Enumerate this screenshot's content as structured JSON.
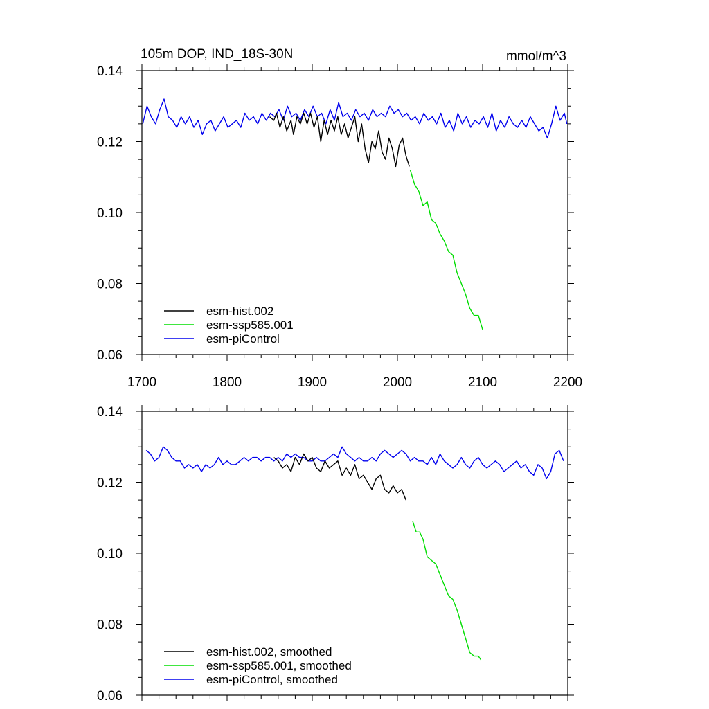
{
  "chart_data": [
    {
      "type": "line",
      "title": "105m DOP, IND_18S-30N",
      "units": "mmol/m^3",
      "xlim": [
        1700,
        2200
      ],
      "ylim": [
        0.06,
        0.14
      ],
      "x_ticks": [
        1700,
        1800,
        1900,
        2000,
        2100,
        2200
      ],
      "x_tick_labels": [
        "1700",
        "1800",
        "1900",
        "2000",
        "2100",
        "2200"
      ],
      "y_ticks": [
        0.06,
        0.08,
        0.1,
        0.12,
        0.14
      ],
      "y_tick_labels": [
        "0.06",
        "0.08",
        "0.10",
        "0.12",
        "0.14"
      ],
      "legend_position": "bottom-left",
      "series": [
        {
          "name": "esm-hist.002",
          "color": "#000000",
          "x": [
            1850,
            1855,
            1858,
            1862,
            1866,
            1870,
            1875,
            1878,
            1882,
            1886,
            1890,
            1894,
            1898,
            1902,
            1906,
            1910,
            1914,
            1918,
            1922,
            1926,
            1930,
            1934,
            1938,
            1942,
            1946,
            1950,
            1954,
            1958,
            1962,
            1966,
            1970,
            1974,
            1978,
            1982,
            1986,
            1990,
            1994,
            1998,
            2002,
            2006,
            2010,
            2014
          ],
          "y": [
            0.127,
            0.126,
            0.128,
            0.124,
            0.127,
            0.123,
            0.126,
            0.122,
            0.127,
            0.125,
            0.128,
            0.125,
            0.128,
            0.124,
            0.127,
            0.12,
            0.126,
            0.122,
            0.126,
            0.123,
            0.127,
            0.122,
            0.125,
            0.121,
            0.124,
            0.127,
            0.12,
            0.125,
            0.118,
            0.114,
            0.12,
            0.118,
            0.123,
            0.117,
            0.115,
            0.121,
            0.118,
            0.113,
            0.119,
            0.121,
            0.116,
            0.113
          ]
        },
        {
          "name": "esm-ssp585.001",
          "color": "#00dd00",
          "x": [
            2015,
            2020,
            2025,
            2030,
            2035,
            2040,
            2045,
            2050,
            2055,
            2060,
            2065,
            2070,
            2075,
            2080,
            2085,
            2090,
            2095,
            2100
          ],
          "y": [
            0.112,
            0.108,
            0.106,
            0.102,
            0.103,
            0.098,
            0.097,
            0.094,
            0.092,
            0.089,
            0.088,
            0.083,
            0.08,
            0.077,
            0.073,
            0.071,
            0.071,
            0.067
          ]
        },
        {
          "name": "esm-piControl",
          "color": "#0000ee",
          "x": [
            1701,
            1706,
            1711,
            1716,
            1721,
            1726,
            1731,
            1736,
            1741,
            1746,
            1751,
            1756,
            1761,
            1766,
            1771,
            1776,
            1781,
            1786,
            1791,
            1796,
            1801,
            1806,
            1811,
            1816,
            1821,
            1826,
            1831,
            1836,
            1841,
            1846,
            1851,
            1856,
            1861,
            1866,
            1871,
            1876,
            1881,
            1886,
            1891,
            1896,
            1901,
            1906,
            1911,
            1916,
            1921,
            1926,
            1931,
            1936,
            1941,
            1946,
            1951,
            1956,
            1961,
            1966,
            1971,
            1976,
            1981,
            1986,
            1991,
            1996,
            2001,
            2006,
            2011,
            2016,
            2021,
            2026,
            2031,
            2036,
            2041,
            2046,
            2051,
            2056,
            2061,
            2066,
            2071,
            2076,
            2081,
            2086,
            2091,
            2096,
            2101,
            2106,
            2111,
            2116,
            2121,
            2126,
            2131,
            2136,
            2141,
            2146,
            2151,
            2156,
            2161,
            2166,
            2171,
            2176,
            2181,
            2186,
            2191,
            2196,
            2199
          ],
          "y": [
            0.125,
            0.13,
            0.127,
            0.125,
            0.129,
            0.132,
            0.127,
            0.126,
            0.124,
            0.127,
            0.125,
            0.127,
            0.124,
            0.126,
            0.122,
            0.125,
            0.126,
            0.123,
            0.125,
            0.127,
            0.124,
            0.125,
            0.126,
            0.124,
            0.128,
            0.126,
            0.127,
            0.125,
            0.128,
            0.126,
            0.128,
            0.127,
            0.129,
            0.126,
            0.13,
            0.127,
            0.128,
            0.126,
            0.129,
            0.127,
            0.13,
            0.127,
            0.128,
            0.125,
            0.129,
            0.126,
            0.131,
            0.127,
            0.128,
            0.126,
            0.129,
            0.127,
            0.128,
            0.126,
            0.129,
            0.127,
            0.128,
            0.127,
            0.13,
            0.128,
            0.129,
            0.127,
            0.128,
            0.126,
            0.127,
            0.125,
            0.128,
            0.126,
            0.127,
            0.125,
            0.128,
            0.124,
            0.126,
            0.123,
            0.128,
            0.125,
            0.127,
            0.124,
            0.126,
            0.125,
            0.127,
            0.124,
            0.128,
            0.123,
            0.126,
            0.124,
            0.127,
            0.125,
            0.124,
            0.126,
            0.124,
            0.127,
            0.125,
            0.123,
            0.124,
            0.121,
            0.125,
            0.13,
            0.126,
            0.128,
            0.125
          ]
        }
      ]
    },
    {
      "type": "line",
      "xlim": [
        1700,
        2200
      ],
      "ylim": [
        0.06,
        0.14
      ],
      "x_ticks": [
        1700,
        1800,
        1900,
        2000,
        2100,
        2200
      ],
      "y_ticks": [
        0.06,
        0.08,
        0.1,
        0.12,
        0.14
      ],
      "y_tick_labels": [
        "0.06",
        "0.08",
        "0.10",
        "0.12",
        "0.14"
      ],
      "legend_position": "bottom-left",
      "series": [
        {
          "name": "esm-hist.002, smoothed",
          "color": "#000000",
          "x": [
            1855,
            1860,
            1865,
            1870,
            1875,
            1880,
            1885,
            1890,
            1895,
            1900,
            1905,
            1910,
            1915,
            1920,
            1925,
            1930,
            1935,
            1940,
            1945,
            1950,
            1955,
            1960,
            1965,
            1970,
            1975,
            1980,
            1985,
            1990,
            1995,
            2000,
            2005,
            2010
          ],
          "y": [
            0.127,
            0.126,
            0.124,
            0.125,
            0.123,
            0.127,
            0.125,
            0.128,
            0.126,
            0.127,
            0.124,
            0.123,
            0.126,
            0.124,
            0.125,
            0.126,
            0.122,
            0.124,
            0.122,
            0.125,
            0.121,
            0.122,
            0.12,
            0.118,
            0.121,
            0.122,
            0.118,
            0.117,
            0.119,
            0.117,
            0.118,
            0.115
          ]
        },
        {
          "name": "esm-ssp585.001, smoothed",
          "color": "#00dd00",
          "x": [
            2018,
            2022,
            2026,
            2030,
            2035,
            2040,
            2045,
            2050,
            2055,
            2060,
            2065,
            2070,
            2075,
            2080,
            2085,
            2090,
            2095,
            2098
          ],
          "y": [
            0.109,
            0.106,
            0.106,
            0.104,
            0.099,
            0.098,
            0.097,
            0.094,
            0.091,
            0.088,
            0.087,
            0.084,
            0.08,
            0.076,
            0.072,
            0.071,
            0.071,
            0.07
          ]
        },
        {
          "name": "esm-piControl, smoothed",
          "color": "#0000ee",
          "x": [
            1705,
            1710,
            1715,
            1720,
            1725,
            1730,
            1735,
            1740,
            1745,
            1750,
            1755,
            1760,
            1765,
            1770,
            1775,
            1780,
            1785,
            1790,
            1795,
            1800,
            1805,
            1810,
            1815,
            1820,
            1825,
            1830,
            1835,
            1840,
            1845,
            1850,
            1855,
            1860,
            1865,
            1870,
            1875,
            1880,
            1885,
            1890,
            1895,
            1900,
            1905,
            1910,
            1915,
            1920,
            1925,
            1930,
            1935,
            1940,
            1945,
            1950,
            1955,
            1960,
            1965,
            1970,
            1975,
            1980,
            1985,
            1990,
            1995,
            2000,
            2005,
            2010,
            2015,
            2020,
            2025,
            2030,
            2035,
            2040,
            2045,
            2050,
            2055,
            2060,
            2065,
            2070,
            2075,
            2080,
            2085,
            2090,
            2095,
            2100,
            2105,
            2110,
            2115,
            2120,
            2125,
            2130,
            2135,
            2140,
            2145,
            2150,
            2155,
            2160,
            2165,
            2170,
            2175,
            2180,
            2185,
            2190,
            2195
          ],
          "y": [
            0.129,
            0.128,
            0.126,
            0.127,
            0.13,
            0.129,
            0.127,
            0.126,
            0.126,
            0.124,
            0.125,
            0.124,
            0.125,
            0.123,
            0.125,
            0.124,
            0.125,
            0.127,
            0.125,
            0.126,
            0.125,
            0.125,
            0.126,
            0.127,
            0.126,
            0.127,
            0.127,
            0.126,
            0.127,
            0.127,
            0.126,
            0.127,
            0.126,
            0.128,
            0.127,
            0.128,
            0.127,
            0.127,
            0.126,
            0.126,
            0.127,
            0.126,
            0.126,
            0.127,
            0.128,
            0.127,
            0.13,
            0.128,
            0.127,
            0.126,
            0.127,
            0.126,
            0.126,
            0.127,
            0.126,
            0.128,
            0.129,
            0.128,
            0.127,
            0.128,
            0.129,
            0.128,
            0.126,
            0.127,
            0.126,
            0.126,
            0.125,
            0.127,
            0.125,
            0.128,
            0.126,
            0.125,
            0.124,
            0.125,
            0.127,
            0.125,
            0.124,
            0.126,
            0.127,
            0.125,
            0.124,
            0.125,
            0.126,
            0.125,
            0.123,
            0.124,
            0.125,
            0.126,
            0.124,
            0.125,
            0.123,
            0.122,
            0.125,
            0.124,
            0.121,
            0.123,
            0.128,
            0.129,
            0.126
          ]
        }
      ]
    }
  ]
}
